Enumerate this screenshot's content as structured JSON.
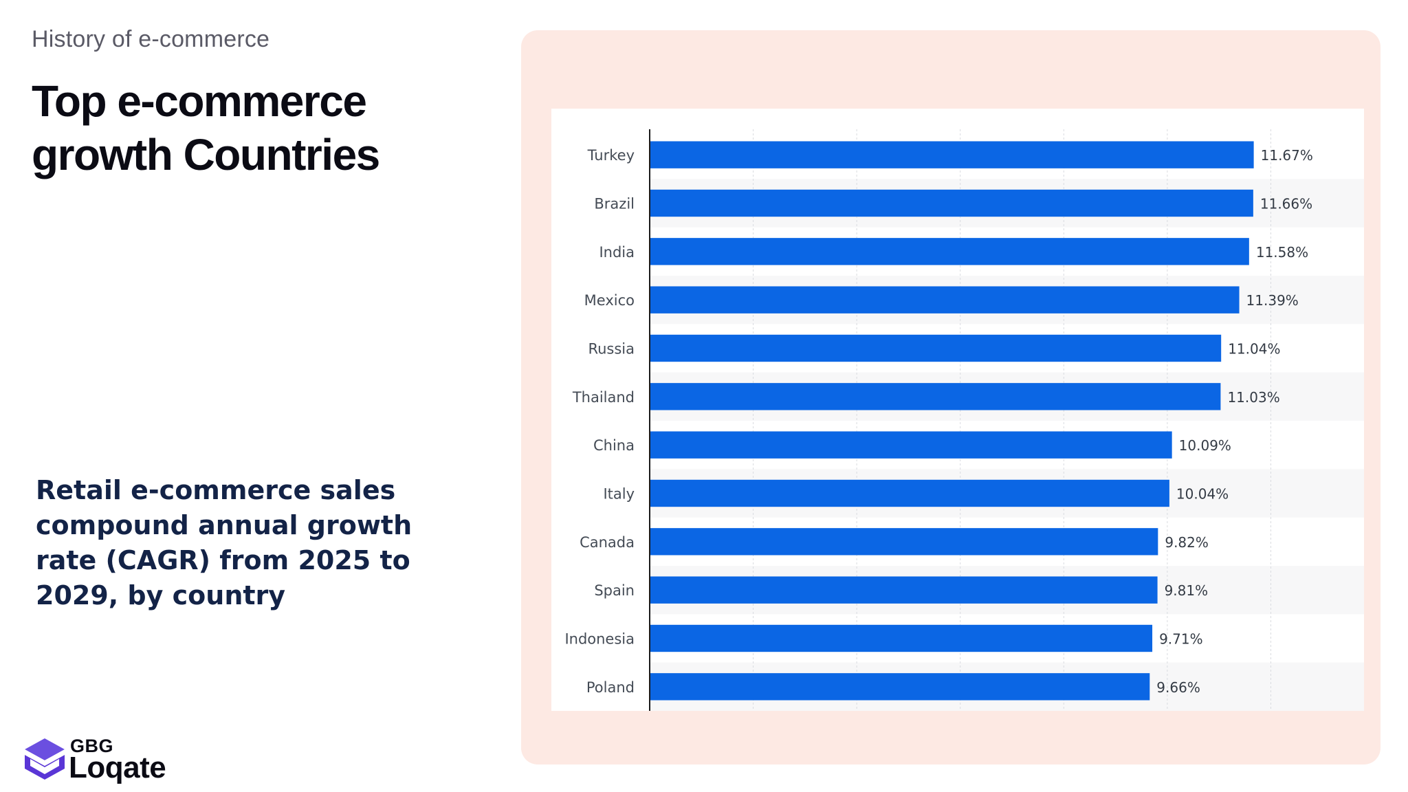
{
  "header": {
    "eyebrow": "History of e-commerce",
    "title_line1": "Top e-commerce",
    "title_line2": "growth Countries"
  },
  "subtitle": "Retail e-commerce sales compound annual growth rate (CAGR) from 2025 to 2029, by country",
  "logo": {
    "small": "GBG",
    "name": "Loqate",
    "icon": "gbg-loqate-logo-icon"
  },
  "colors": {
    "bar": "#0b66e4",
    "panel": "#fde9e3",
    "title": "#0b0b14",
    "subtitle": "#132347"
  },
  "chart_data": {
    "type": "bar",
    "orientation": "horizontal",
    "categories": [
      "Turkey",
      "Brazil",
      "India",
      "Mexico",
      "Russia",
      "Thailand",
      "China",
      "Italy",
      "Canada",
      "Spain",
      "Indonesia",
      "Poland"
    ],
    "values": [
      11.67,
      11.66,
      11.58,
      11.39,
      11.04,
      11.03,
      10.09,
      10.04,
      9.82,
      9.81,
      9.71,
      9.66
    ],
    "value_labels": [
      "11.67%",
      "11.66%",
      "11.58%",
      "11.39%",
      "11.04%",
      "11.03%",
      "10.09%",
      "10.04%",
      "9.82%",
      "9.81%",
      "9.71%",
      "9.66%"
    ],
    "xlim": [
      0,
      13.8
    ],
    "grid": true
  }
}
